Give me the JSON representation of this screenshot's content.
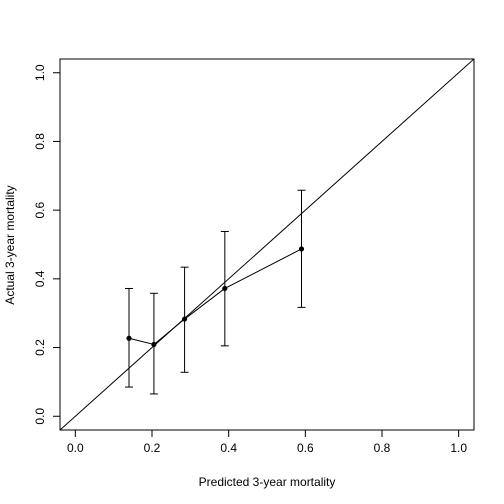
{
  "chart_data": {
    "type": "scatter",
    "xlabel": "Predicted 3-year mortality",
    "ylabel": "Actual 3-year mortality",
    "xlim": [
      -0.04,
      1.04
    ],
    "ylim": [
      -0.04,
      1.04
    ],
    "x_ticks": [
      0.0,
      0.2,
      0.4,
      0.6,
      0.8,
      1.0
    ],
    "x_tick_labels": [
      "0.0",
      "0.2",
      "0.4",
      "0.6",
      "0.8",
      "1.0"
    ],
    "y_ticks": [
      0.0,
      0.2,
      0.4,
      0.6,
      0.8,
      1.0
    ],
    "y_tick_labels": [
      "0.0",
      "0.2",
      "0.4",
      "0.6",
      "0.8",
      "1.0"
    ],
    "grid": false,
    "reference_line": {
      "slope": 1,
      "intercept": 0
    },
    "series": [
      {
        "points": [
          {
            "x": 0.14,
            "y": 0.227,
            "lower": 0.085,
            "upper": 0.372
          },
          {
            "x": 0.205,
            "y": 0.209,
            "lower": 0.065,
            "upper": 0.358
          },
          {
            "x": 0.285,
            "y": 0.283,
            "lower": 0.128,
            "upper": 0.434
          },
          {
            "x": 0.39,
            "y": 0.372,
            "lower": 0.205,
            "upper": 0.538
          },
          {
            "x": 0.59,
            "y": 0.487,
            "lower": 0.317,
            "upper": 0.658
          }
        ]
      }
    ]
  }
}
